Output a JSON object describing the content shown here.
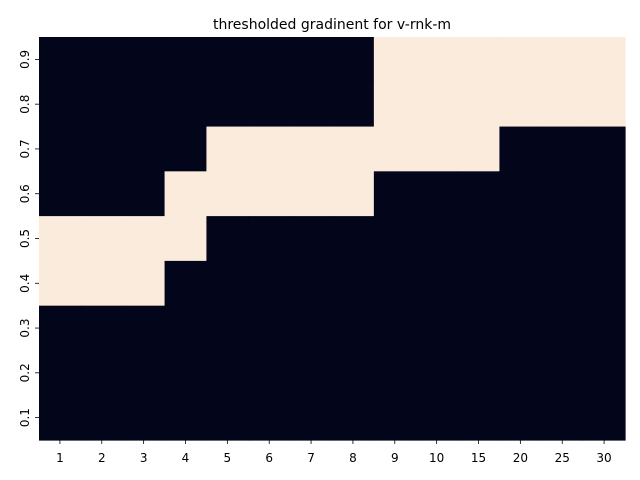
{
  "chart_data": {
    "type": "heatmap",
    "title": "thresholded gradinent for v-rnk-m",
    "xlabel": "",
    "ylabel": "",
    "x_categories": [
      "1",
      "2",
      "3",
      "4",
      "5",
      "6",
      "7",
      "8",
      "9",
      "10",
      "15",
      "20",
      "25",
      "30"
    ],
    "y_categories": [
      "0.9",
      "0.8",
      "0.7",
      "0.6",
      "0.5",
      "0.4",
      "0.3",
      "0.2",
      "0.1"
    ],
    "values": [
      [
        0,
        0,
        0,
        0,
        0,
        0,
        0,
        0,
        1,
        1,
        1,
        1,
        1,
        1
      ],
      [
        0,
        0,
        0,
        0,
        0,
        0,
        0,
        0,
        1,
        1,
        1,
        1,
        1,
        1
      ],
      [
        0,
        0,
        0,
        0,
        1,
        1,
        1,
        1,
        1,
        1,
        1,
        0,
        0,
        0
      ],
      [
        0,
        0,
        0,
        1,
        1,
        1,
        1,
        1,
        0,
        0,
        0,
        0,
        0,
        0
      ],
      [
        1,
        1,
        1,
        1,
        0,
        0,
        0,
        0,
        0,
        0,
        0,
        0,
        0,
        0
      ],
      [
        1,
        1,
        1,
        0,
        0,
        0,
        0,
        0,
        0,
        0,
        0,
        0,
        0,
        0
      ],
      [
        0,
        0,
        0,
        0,
        0,
        0,
        0,
        0,
        0,
        0,
        0,
        0,
        0,
        0
      ],
      [
        0,
        0,
        0,
        0,
        0,
        0,
        0,
        0,
        0,
        0,
        0,
        0,
        0,
        0
      ],
      [
        0,
        0,
        0,
        0,
        0,
        0,
        0,
        0,
        0,
        0,
        0,
        0,
        0,
        0
      ]
    ],
    "colors": {
      "low": "#03051a",
      "high": "#faebdd"
    },
    "grid": false,
    "legend": "none"
  }
}
